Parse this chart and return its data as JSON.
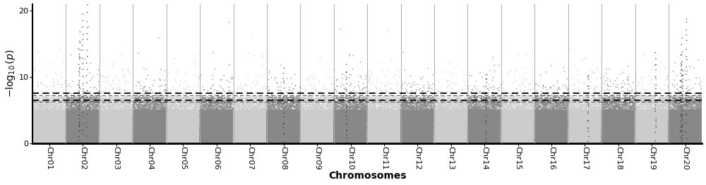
{
  "chromosomes": [
    "Chr01",
    "Chr02",
    "Chr03",
    "Chr04",
    "Chr05",
    "Chr06",
    "Chr07",
    "Chr08",
    "Chr09",
    "Chr10",
    "Chr11",
    "Chr12",
    "Chr13",
    "Chr14",
    "Chr15",
    "Chr16",
    "Chr17",
    "Chr18",
    "Chr19",
    "Chr20"
  ],
  "n_chromosomes": 20,
  "colors_odd": "#cccccc",
  "colors_even": "#888888",
  "background_color": "#ffffff",
  "ylabel": "$-\\log_{10}(p)$",
  "xlabel": "Chromosomes",
  "ylim": [
    0,
    21
  ],
  "yticks": [
    0,
    10,
    20
  ],
  "dashed_lines": [
    6.5,
    7.5
  ],
  "seed": 42,
  "snp_per_chr": 15000,
  "chr_separator_color": "#aaaaaa",
  "chr_separator_lw": 0.7,
  "label_fontsize": 10,
  "tick_fontsize": 8,
  "significant_peaks": {
    "2": [
      14.0,
      16.5,
      19.5,
      22.0
    ],
    "8": [
      11.0
    ],
    "10": [
      11.5
    ],
    "14": [
      10.5
    ],
    "17": [
      10.5
    ],
    "19": [
      13.5
    ],
    "20": [
      19.0,
      15.5,
      13.0,
      11.0
    ]
  },
  "point_size": 1.2,
  "point_alpha": 0.9
}
